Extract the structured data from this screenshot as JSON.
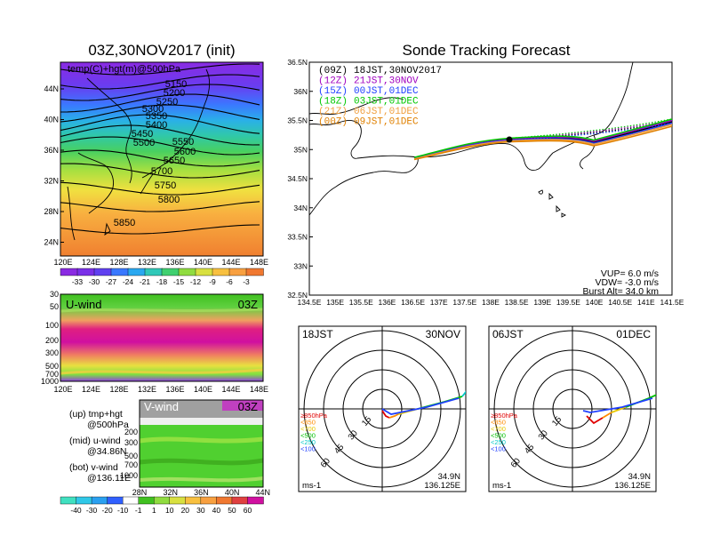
{
  "main_map": {
    "title": "03Z,30NOV2017 (init)",
    "label": "temp(C)+hgt(m)@500hPa",
    "contours": [
      "5150",
      "5200",
      "5250",
      "5300",
      "5350",
      "5400",
      "5450",
      "5500",
      "5550",
      "5600",
      "5650",
      "5700",
      "5750",
      "5800",
      "5850"
    ],
    "y_ticks": [
      "44N",
      "40N",
      "36N",
      "32N",
      "28N",
      "24N"
    ],
    "x_ticks": [
      "120E",
      "124E",
      "128E",
      "132E",
      "136E",
      "140E",
      "144E",
      "148E"
    ],
    "colorbar_labels": [
      "-33",
      "-30",
      "-27",
      "-24",
      "-21",
      "-18",
      "-15",
      "-12",
      "-9",
      "-6",
      "-3"
    ]
  },
  "uwind": {
    "label": "U-wind",
    "time": "03Z",
    "y_ticks": [
      "30",
      "50",
      "100",
      "200",
      "300",
      "500",
      "700",
      "1000"
    ],
    "x_ticks": [
      "120E",
      "124E",
      "128E",
      "132E",
      "136E",
      "140E",
      "144E",
      "148E"
    ]
  },
  "vwind": {
    "label": "V-wind",
    "time": "03Z",
    "y_ticks": [
      "200",
      "300",
      "500",
      "700",
      "1000"
    ],
    "x_ticks": [
      "28N",
      "32N",
      "36N",
      "40N",
      "44N"
    ],
    "colorbar_labels": [
      "-40",
      "-30",
      "-20",
      "-10",
      "-1",
      "1",
      "10",
      "20",
      "30",
      "40",
      "50",
      "60"
    ]
  },
  "legend": {
    "line1a": "(up) tmp+hgt",
    "line1b": "@500hPa",
    "line2a": "(mid) u-wind",
    "line2b": "@34.86N",
    "line3a": "(bot) v-wind",
    "line3b": "@136.11E"
  },
  "tracking": {
    "title": "Sonde Tracking Forecast",
    "launches": [
      {
        "utc": "(09Z)",
        "jst": "18JST,30NOV2017",
        "color": "#000000"
      },
      {
        "utc": "(12Z)",
        "jst": "21JST,30NOV",
        "color": "#a000c0"
      },
      {
        "utc": "(15Z)",
        "jst": "00JST,01DEC",
        "color": "#2040ff"
      },
      {
        "utc": "(18Z)",
        "jst": "03JST,01DEC",
        "color": "#00c800"
      },
      {
        "utc": "(21Z)",
        "jst": "06JST,01DEC",
        "color": "#f0a040"
      },
      {
        "utc": "(00Z)",
        "jst": "09JST,01DEC",
        "color": "#e08000"
      }
    ],
    "y_ticks": [
      "36.5N",
      "36N",
      "35.5N",
      "35N",
      "34.5N",
      "34N",
      "33.5N",
      "33N",
      "32.5N"
    ],
    "x_ticks": [
      "134.5E",
      "135E",
      "135.5E",
      "136E",
      "136.5E",
      "137E",
      "137.5E",
      "138E",
      "138.5E",
      "139E",
      "139.5E",
      "140E",
      "140.5E",
      "141E",
      "141.5E"
    ],
    "vup": "VUP=  6.0 m/s",
    "vdw": "VDW= -3.0 m/s",
    "burst": "Burst Alt= 34.0 km"
  },
  "hodo_left": {
    "time": "18JST",
    "date": "30NOV",
    "rings": [
      "15",
      "30",
      "45",
      "60"
    ],
    "levels": [
      "≥850hPa",
      "<850",
      "<700",
      "<500",
      "<250",
      "<100"
    ],
    "unit": "ms-1",
    "lat": "34.9N",
    "lon": "136.125E"
  },
  "hodo_right": {
    "time": "06JST",
    "date": "01DEC",
    "rings": [
      "15",
      "30",
      "45",
      "60"
    ],
    "levels": [
      "≥850hPa",
      "<850",
      "<700",
      "<500",
      "<250",
      "<100"
    ],
    "unit": "ms-1",
    "lat": "34.9N",
    "lon": "136.125E"
  },
  "colors": {
    "level_colors": [
      "#e00000",
      "#ff8c00",
      "#e8c800",
      "#00c000",
      "#00c8c8",
      "#2040ff"
    ]
  }
}
